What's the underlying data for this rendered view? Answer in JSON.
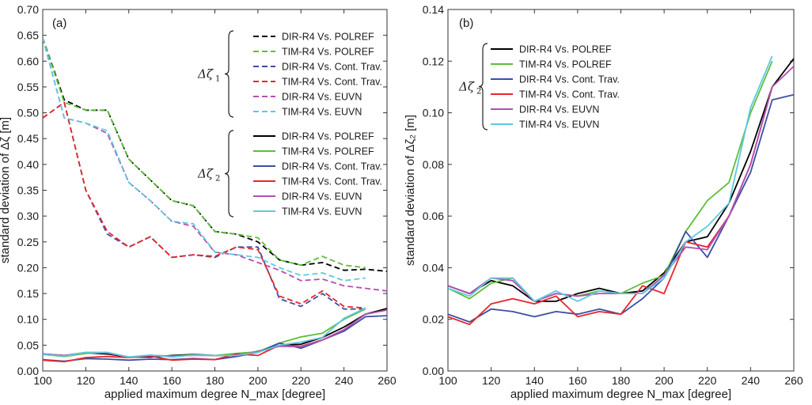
{
  "colors": {
    "DIR-R4 Vs. POLREF": "#000000",
    "TIM-R4 Vs. POLREF": "#5cbf38",
    "DIR-R4 Vs. Cont. Trav.": "#3b4ea6",
    "TIM-R4 Vs. Cont. Trav.": "#e8262b",
    "DIR-R4 Vs. EUVN": "#b34fb3",
    "TIM-R4 Vs. EUVN": "#5dc9e0"
  },
  "chart_data": [
    {
      "type": "line",
      "panel_label": "(a)",
      "xlabel": "applied maximum degree N_max [degree]",
      "ylabel": "standard deviation of Δζ [m]",
      "xlim": [
        100,
        260
      ],
      "ylim": [
        0,
        0.7
      ],
      "xticks": [
        "100",
        "120",
        "140",
        "160",
        "180",
        "200",
        "220",
        "240",
        "260"
      ],
      "yticks": [
        "0.00",
        "0.05",
        "0.10",
        "0.15",
        "0.20",
        "0.25",
        "0.30",
        "0.35",
        "0.40",
        "0.45",
        "0.50",
        "0.55",
        "0.60",
        "0.65",
        "0.70"
      ],
      "grid": false,
      "legend_position": "top-right",
      "legend_groups": [
        {
          "label": "Δζ",
          "sub": "1",
          "style": "dashed"
        },
        {
          "label": "Δζ",
          "sub": "2",
          "style": "solid"
        }
      ],
      "series": [
        {
          "name": "DIR-R4 Vs. POLREF",
          "group": 0,
          "style": "dashed",
          "x": [
            100,
            110,
            120,
            130,
            140,
            150,
            160,
            170,
            180,
            190,
            200,
            210,
            220,
            230,
            240,
            250,
            260
          ],
          "y": [
            0.645,
            0.525,
            0.505,
            0.505,
            0.41,
            0.37,
            0.33,
            0.32,
            0.27,
            0.265,
            0.25,
            0.215,
            0.205,
            0.21,
            0.195,
            0.197,
            0.193
          ]
        },
        {
          "name": "TIM-R4 Vs. POLREF",
          "group": 0,
          "style": "dashed",
          "x": [
            100,
            110,
            120,
            130,
            140,
            150,
            160,
            170,
            180,
            190,
            200,
            210,
            220,
            230,
            240,
            250
          ],
          "y": [
            0.645,
            0.52,
            0.505,
            0.505,
            0.41,
            0.37,
            0.33,
            0.32,
            0.27,
            0.265,
            0.258,
            0.215,
            0.205,
            0.222,
            0.205,
            0.2
          ]
        },
        {
          "name": "DIR-R4 Vs. Cont. Trav.",
          "group": 0,
          "style": "dashed",
          "x": [
            100,
            110,
            120,
            130,
            140,
            150,
            160,
            170,
            180,
            190,
            200,
            210,
            220,
            230,
            240,
            250
          ],
          "y": [
            0.49,
            0.52,
            0.35,
            0.265,
            0.24,
            0.26,
            0.22,
            0.225,
            0.22,
            0.24,
            0.24,
            0.14,
            0.125,
            0.15,
            0.12,
            0.12
          ]
        },
        {
          "name": "TIM-R4 Vs. Cont. Trav.",
          "group": 0,
          "style": "dashed",
          "x": [
            100,
            110,
            120,
            130,
            140,
            150,
            160,
            170,
            180,
            190,
            200,
            210,
            220,
            230,
            240,
            250
          ],
          "y": [
            0.49,
            0.52,
            0.35,
            0.27,
            0.24,
            0.26,
            0.22,
            0.225,
            0.222,
            0.24,
            0.235,
            0.145,
            0.13,
            0.155,
            0.125,
            0.122
          ]
        },
        {
          "name": "DIR-R4 Vs. EUVN",
          "group": 0,
          "style": "dashed",
          "x": [
            100,
            110,
            120,
            130,
            140,
            150,
            160,
            170,
            180,
            190,
            200,
            210,
            220,
            230,
            240,
            250,
            260
          ],
          "y": [
            0.645,
            0.49,
            0.48,
            0.46,
            0.365,
            0.33,
            0.29,
            0.28,
            0.23,
            0.225,
            0.21,
            0.195,
            0.175,
            0.178,
            0.165,
            0.16,
            0.155
          ]
        },
        {
          "name": "TIM-R4 Vs. EUVN",
          "group": 0,
          "style": "dashed",
          "x": [
            100,
            110,
            120,
            130,
            140,
            150,
            160,
            170,
            180,
            190,
            200,
            210,
            220,
            230,
            240,
            250
          ],
          "y": [
            0.645,
            0.49,
            0.48,
            0.465,
            0.365,
            0.33,
            0.29,
            0.285,
            0.23,
            0.225,
            0.22,
            0.2,
            0.185,
            0.19,
            0.175,
            0.18
          ]
        },
        {
          "name": "DIR-R4 Vs. POLREF",
          "group": 1,
          "style": "solid",
          "x": [
            100,
            110,
            120,
            130,
            140,
            150,
            160,
            170,
            180,
            190,
            200,
            210,
            220,
            230,
            240,
            250,
            260
          ],
          "y": [
            0.033,
            0.03,
            0.035,
            0.033,
            0.027,
            0.027,
            0.03,
            0.032,
            0.03,
            0.031,
            0.038,
            0.05,
            0.052,
            0.065,
            0.085,
            0.11,
            0.121
          ]
        },
        {
          "name": "TIM-R4 Vs. POLREF",
          "group": 1,
          "style": "solid",
          "x": [
            100,
            110,
            120,
            130,
            140,
            150,
            160,
            170,
            180,
            190,
            200,
            210,
            220,
            230,
            240,
            250
          ],
          "y": [
            0.032,
            0.028,
            0.034,
            0.036,
            0.027,
            0.03,
            0.029,
            0.031,
            0.03,
            0.034,
            0.037,
            0.054,
            0.066,
            0.073,
            0.1,
            0.12
          ]
        },
        {
          "name": "DIR-R4 Vs. Cont. Trav.",
          "group": 1,
          "style": "solid",
          "x": [
            100,
            110,
            120,
            130,
            140,
            150,
            160,
            170,
            180,
            190,
            200,
            210,
            220,
            230,
            240,
            250,
            260
          ],
          "y": [
            0.022,
            0.019,
            0.024,
            0.023,
            0.021,
            0.023,
            0.022,
            0.024,
            0.022,
            0.028,
            0.036,
            0.054,
            0.044,
            0.06,
            0.077,
            0.105,
            0.107
          ]
        },
        {
          "name": "TIM-R4 Vs. Cont. Trav.",
          "group": 1,
          "style": "solid",
          "x": [
            100,
            110,
            120,
            130,
            140,
            150,
            160,
            170,
            180,
            190,
            200,
            210,
            220,
            230,
            240,
            250
          ],
          "y": [
            0.021,
            0.018,
            0.026,
            0.028,
            0.026,
            0.029,
            0.021,
            0.023,
            0.022,
            0.033,
            0.03,
            0.05,
            0.048,
            0.06,
            0.08,
            0.11
          ]
        },
        {
          "name": "DIR-R4 Vs. EUVN",
          "group": 1,
          "style": "solid",
          "x": [
            100,
            110,
            120,
            130,
            140,
            150,
            160,
            170,
            180,
            190,
            200,
            210,
            220,
            230,
            240,
            250,
            260
          ],
          "y": [
            0.033,
            0.03,
            0.036,
            0.035,
            0.027,
            0.03,
            0.029,
            0.03,
            0.03,
            0.03,
            0.037,
            0.048,
            0.047,
            0.06,
            0.08,
            0.11,
            0.118
          ]
        },
        {
          "name": "TIM-R4 Vs. EUVN",
          "group": 1,
          "style": "solid",
          "x": [
            100,
            110,
            120,
            130,
            140,
            150,
            160,
            170,
            180,
            190,
            200,
            210,
            220,
            230,
            240,
            250
          ],
          "y": [
            0.032,
            0.029,
            0.036,
            0.036,
            0.027,
            0.031,
            0.027,
            0.031,
            0.03,
            0.03,
            0.036,
            0.05,
            0.056,
            0.065,
            0.102,
            0.122
          ]
        }
      ]
    },
    {
      "type": "line",
      "panel_label": "(b)",
      "xlabel": "applied maximum degree N_max [degree]",
      "ylabel": "standard deviation of Δζ₂ [m]",
      "xlim": [
        100,
        260
      ],
      "ylim": [
        0,
        0.14
      ],
      "xticks": [
        "100",
        "120",
        "140",
        "160",
        "180",
        "200",
        "220",
        "240",
        "260"
      ],
      "yticks": [
        "0.00",
        "0.02",
        "0.04",
        "0.06",
        "0.08",
        "0.10",
        "0.12",
        "0.14"
      ],
      "grid": false,
      "legend_position": "top-left",
      "legend_groups": [
        {
          "label": "Δζ",
          "sub": "2",
          "style": "solid"
        }
      ],
      "series": [
        {
          "name": "DIR-R4 Vs. POLREF",
          "group": 0,
          "style": "solid",
          "x": [
            100,
            110,
            120,
            130,
            140,
            150,
            160,
            170,
            180,
            190,
            200,
            210,
            220,
            230,
            240,
            250,
            260
          ],
          "y": [
            0.033,
            0.03,
            0.035,
            0.033,
            0.027,
            0.027,
            0.03,
            0.032,
            0.03,
            0.031,
            0.038,
            0.05,
            0.052,
            0.065,
            0.085,
            0.11,
            0.121
          ]
        },
        {
          "name": "TIM-R4 Vs. POLREF",
          "group": 0,
          "style": "solid",
          "x": [
            100,
            110,
            120,
            130,
            140,
            150,
            160,
            170,
            180,
            190,
            200,
            210,
            220,
            230,
            240,
            250
          ],
          "y": [
            0.032,
            0.028,
            0.034,
            0.036,
            0.027,
            0.03,
            0.029,
            0.031,
            0.03,
            0.034,
            0.037,
            0.054,
            0.066,
            0.073,
            0.1,
            0.12
          ]
        },
        {
          "name": "DIR-R4 Vs. Cont. Trav.",
          "group": 0,
          "style": "solid",
          "x": [
            100,
            110,
            120,
            130,
            140,
            150,
            160,
            170,
            180,
            190,
            200,
            210,
            220,
            230,
            240,
            250,
            260
          ],
          "y": [
            0.022,
            0.019,
            0.024,
            0.023,
            0.021,
            0.023,
            0.022,
            0.024,
            0.022,
            0.028,
            0.036,
            0.054,
            0.044,
            0.06,
            0.077,
            0.105,
            0.107
          ]
        },
        {
          "name": "TIM-R4 Vs. Cont. Trav.",
          "group": 0,
          "style": "solid",
          "x": [
            100,
            110,
            120,
            130,
            140,
            150,
            160,
            170,
            180,
            190,
            200,
            210,
            220,
            230,
            240,
            250
          ],
          "y": [
            0.021,
            0.018,
            0.026,
            0.028,
            0.026,
            0.029,
            0.021,
            0.023,
            0.022,
            0.033,
            0.03,
            0.05,
            0.048,
            0.06,
            0.08,
            0.11
          ]
        },
        {
          "name": "DIR-R4 Vs. EUVN",
          "group": 0,
          "style": "solid",
          "x": [
            100,
            110,
            120,
            130,
            140,
            150,
            160,
            170,
            180,
            190,
            200,
            210,
            220,
            230,
            240,
            250,
            260
          ],
          "y": [
            0.033,
            0.03,
            0.036,
            0.035,
            0.027,
            0.03,
            0.029,
            0.03,
            0.03,
            0.03,
            0.037,
            0.048,
            0.047,
            0.06,
            0.08,
            0.11,
            0.118
          ]
        },
        {
          "name": "TIM-R4 Vs. EUVN",
          "group": 0,
          "style": "solid",
          "x": [
            100,
            110,
            120,
            130,
            140,
            150,
            160,
            170,
            180,
            190,
            200,
            210,
            220,
            230,
            240,
            250
          ],
          "y": [
            0.032,
            0.029,
            0.036,
            0.036,
            0.027,
            0.031,
            0.027,
            0.031,
            0.03,
            0.03,
            0.036,
            0.05,
            0.056,
            0.065,
            0.102,
            0.122
          ]
        }
      ]
    }
  ]
}
